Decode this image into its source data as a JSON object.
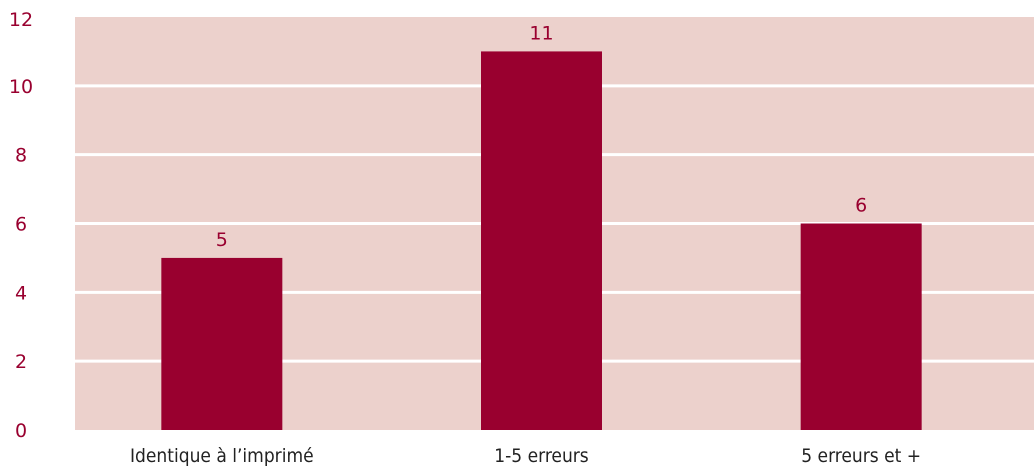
{
  "chart_data": {
    "type": "bar",
    "title": "",
    "xlabel": "",
    "ylabel": "",
    "categories": [
      "Identique à l’imprimé",
      "1-5 erreurs",
      "5 erreurs et +"
    ],
    "values": [
      5,
      11,
      6
    ],
    "data_labels": [
      "5",
      "11",
      "6"
    ],
    "ylim": [
      0,
      12
    ],
    "yticks": [
      0,
      2,
      4,
      6,
      8,
      10,
      12
    ],
    "ytick_labels": [
      "0",
      "2",
      "4",
      "6",
      "8",
      "10",
      "12"
    ],
    "grid": true,
    "legend": "none",
    "colors": {
      "bar": "#99002f",
      "plot_background": "#ecd1cc",
      "gridline": "#ffffff",
      "tick_label": "#99002f",
      "category_label": "#222222",
      "data_label": "#99002f"
    }
  }
}
